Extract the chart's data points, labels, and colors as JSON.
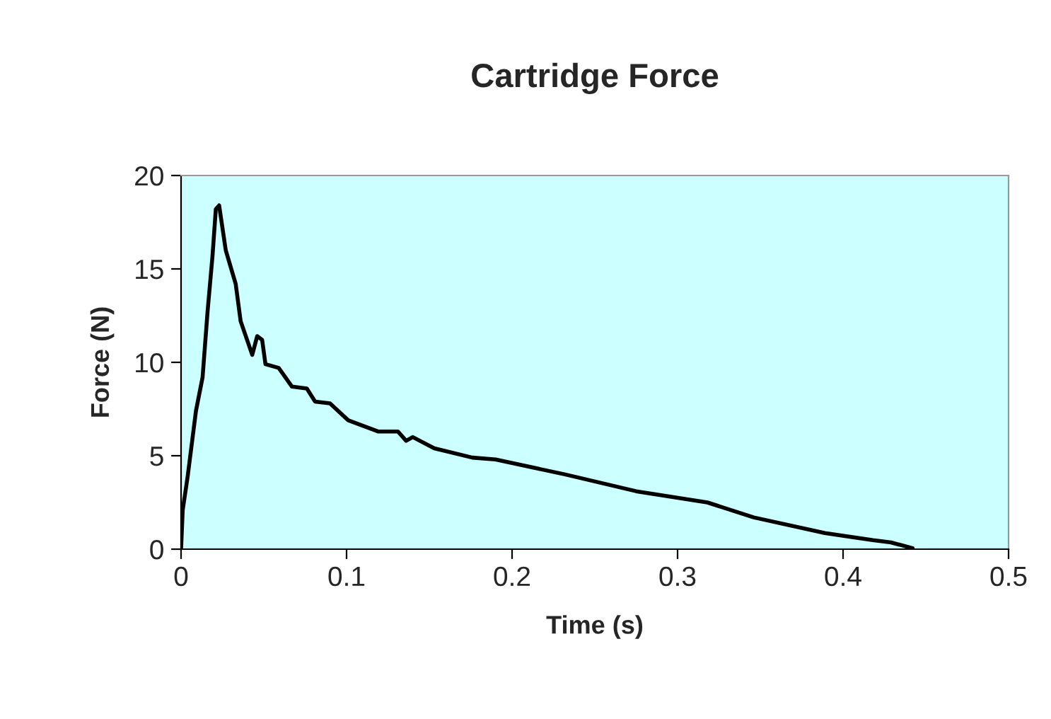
{
  "chart_data": {
    "type": "line",
    "title": "Cartridge Force",
    "xlabel": "Time (s)",
    "ylabel": "Force (N)",
    "x": [
      0,
      0.001,
      0.004,
      0.009,
      0.013,
      0.016,
      0.019,
      0.021,
      0.023,
      0.027,
      0.033,
      0.036,
      0.043,
      0.046,
      0.049,
      0.051,
      0.059,
      0.067,
      0.076,
      0.081,
      0.09,
      0.101,
      0.119,
      0.131,
      0.136,
      0.14,
      0.153,
      0.176,
      0.19,
      0.232,
      0.275,
      0.318,
      0.346,
      0.389,
      0.418,
      0.429,
      0.442
    ],
    "series": [
      {
        "color": "#000000",
        "values": [
          0,
          2.1,
          3.9,
          7.4,
          9.2,
          12.7,
          15.7,
          18.2,
          18.4,
          16.0,
          14.2,
          12.2,
          10.4,
          11.4,
          11.2,
          9.9,
          9.7,
          8.7,
          8.6,
          7.9,
          7.8,
          6.9,
          6.3,
          6.3,
          5.8,
          6.0,
          5.4,
          4.9,
          4.8,
          4.0,
          3.1,
          2.5,
          1.7,
          0.86,
          0.48,
          0.36,
          0.05
        ]
      }
    ],
    "xlim": [
      0,
      0.5
    ],
    "xticks": [
      0,
      0.1,
      0.2,
      0.3,
      0.4,
      0.5
    ],
    "ylim": [
      0,
      20
    ],
    "yticks": [
      0,
      5,
      10,
      15,
      20
    ],
    "grid": false,
    "marker": "none",
    "line_style": "solid"
  }
}
